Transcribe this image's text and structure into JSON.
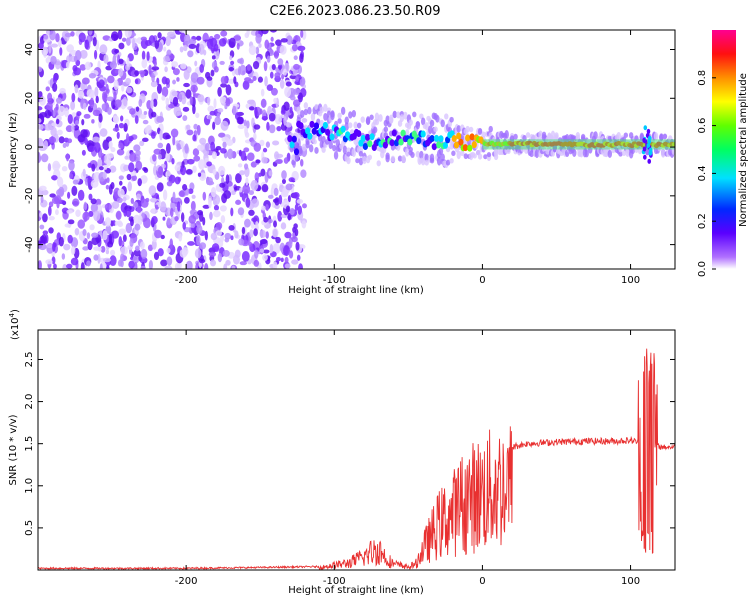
{
  "title": "C2E6.2023.086.23.50.R09",
  "chart_data": [
    {
      "type": "heatmap",
      "xlabel": "Height of straight line (km)",
      "ylabel": "Frequency (Hz)",
      "xlim": [
        -300,
        130
      ],
      "ylim": [
        -50,
        48
      ],
      "x_ticks": [
        -200,
        -100,
        0,
        100
      ],
      "y_ticks": [
        -40,
        -20,
        0,
        20,
        40
      ],
      "colorbar": {
        "label": "Normalized spectral amplitude",
        "range": [
          0.0,
          1.0
        ],
        "ticks": [
          0.0,
          0.2,
          0.4,
          0.6,
          0.8
        ],
        "colormap": "rainbow (white-violet-blue-cyan-green-yellow-orange-red-magenta)"
      },
      "features": {
        "noise_region_x": [
          -300,
          -120
        ],
        "carrier_frequency_hz": 1,
        "carrier_band_x": [
          -130,
          130
        ],
        "carrier_ridge": [
          {
            "x": -125,
            "y": 8
          },
          {
            "x": -110,
            "y": 7
          },
          {
            "x": -95,
            "y": 5
          },
          {
            "x": -80,
            "y": 3
          },
          {
            "x": -65,
            "y": 2
          },
          {
            "x": -55,
            "y": 5
          },
          {
            "x": -40,
            "y": 3
          },
          {
            "x": -25,
            "y": 3
          },
          {
            "x": -10,
            "y": 2
          },
          {
            "x": 0,
            "y": 1.5
          },
          {
            "x": 50,
            "y": 1
          },
          {
            "x": 100,
            "y": 1
          },
          {
            "x": 130,
            "y": 1
          }
        ]
      }
    },
    {
      "type": "line",
      "xlabel": "Height of straight line (km)",
      "ylabel": "SNR (10 * v/v)",
      "y_scale_label": "(x10",
      "y_scale_exp": "4",
      "xlim": [
        -300,
        130
      ],
      "ylim": [
        0,
        2.85
      ],
      "x_ticks": [
        -200,
        -100,
        0,
        100
      ],
      "y_ticks": [
        0.5,
        1.0,
        1.5,
        2.0,
        2.5
      ],
      "y_tick_labels": [
        "0.5",
        "1.0",
        "1.5",
        "2.0",
        "2.5"
      ],
      "color": "#e83030",
      "series": [
        {
          "values": [
            [
              -300,
              0.02
            ],
            [
              -250,
              0.02
            ],
            [
              -200,
              0.02
            ],
            [
              -150,
              0.03
            ],
            [
              -110,
              0.04
            ],
            [
              -100,
              0.08
            ],
            [
              -90,
              0.12
            ],
            [
              -80,
              0.22
            ],
            [
              -75,
              0.3
            ],
            [
              -70,
              0.35
            ],
            [
              -65,
              0.2
            ],
            [
              -60,
              0.1
            ],
            [
              -50,
              0.05
            ],
            [
              -45,
              0.1
            ],
            [
              -40,
              0.35
            ],
            [
              -35,
              0.55
            ],
            [
              -30,
              0.75
            ],
            [
              -25,
              0.85
            ],
            [
              -20,
              0.95
            ],
            [
              -15,
              1.1
            ],
            [
              -10,
              1.2
            ],
            [
              -5,
              1.25
            ],
            [
              0,
              1.3
            ],
            [
              10,
              1.4
            ],
            [
              20,
              1.46
            ],
            [
              30,
              1.5
            ],
            [
              50,
              1.52
            ],
            [
              70,
              1.53
            ],
            [
              90,
              1.53
            ],
            [
              100,
              1.54
            ],
            [
              105,
              1.52
            ],
            [
              108,
              1.2
            ],
            [
              110,
              2.85
            ],
            [
              112,
              0.3
            ],
            [
              114,
              2.75
            ],
            [
              116,
              1.5
            ],
            [
              120,
              1.46
            ],
            [
              130,
              1.46
            ]
          ]
        }
      ]
    }
  ]
}
